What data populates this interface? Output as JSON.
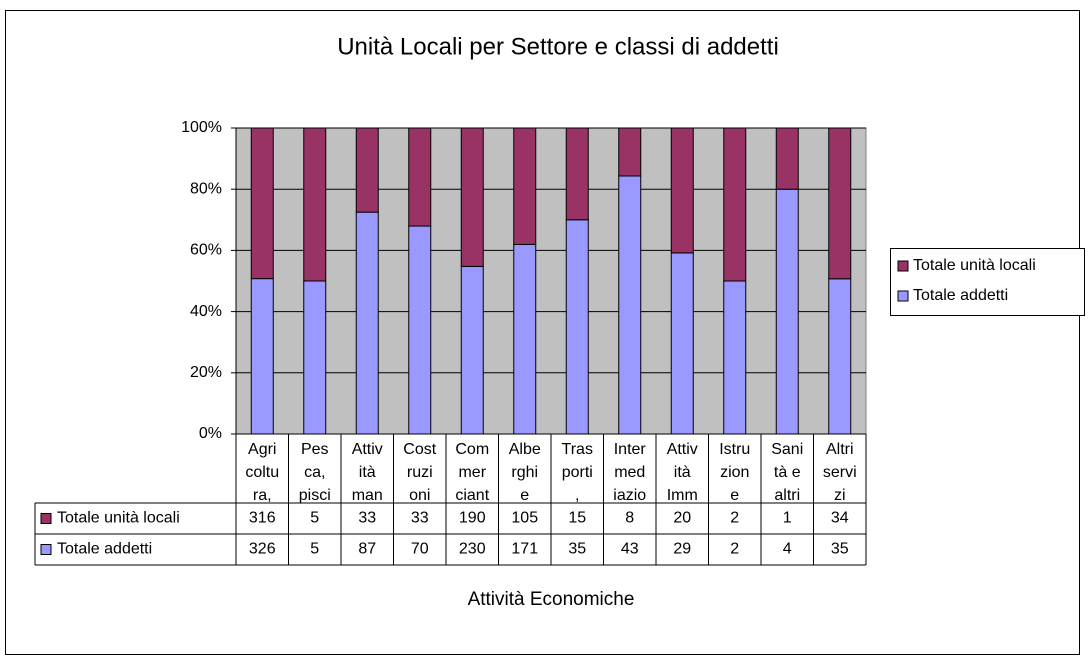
{
  "chart_data": {
    "type": "bar",
    "stacking": "percent",
    "title": "Unità Locali per Settore e classi di addetti",
    "x_label": "Attività Economiche",
    "categories": [
      [
        "Agri",
        "coltu",
        "ra,"
      ],
      [
        "Pes",
        "ca,",
        "pisci"
      ],
      [
        "Attiv",
        "ità",
        "man"
      ],
      [
        "Cost",
        "ruzi",
        "oni"
      ],
      [
        "Com",
        "mer",
        "ciant"
      ],
      [
        "Albe",
        "rghi",
        "e"
      ],
      [
        "Tras",
        "porti",
        ","
      ],
      [
        "Inter",
        "med",
        "iazio"
      ],
      [
        "Attiv",
        "ità",
        "Imm"
      ],
      [
        "Istru",
        "zion",
        "e"
      ],
      [
        "Sani",
        "tà e",
        "altri"
      ],
      [
        "Altri",
        "servi",
        "zi"
      ]
    ],
    "series": [
      {
        "name": "Totale unità locali",
        "color": "#993366",
        "values": [
          316,
          5,
          33,
          33,
          190,
          105,
          15,
          8,
          20,
          2,
          1,
          34
        ]
      },
      {
        "name": "Totale addetti",
        "color": "#9999ff",
        "values": [
          326,
          5,
          87,
          70,
          230,
          171,
          35,
          43,
          29,
          2,
          4,
          35
        ]
      }
    ],
    "ylim": [
      0,
      100
    ],
    "yticks": [
      {
        "value": 0,
        "label": "0%"
      },
      {
        "value": 20,
        "label": "20%"
      },
      {
        "value": 40,
        "label": "40%"
      },
      {
        "value": 60,
        "label": "60%"
      },
      {
        "value": 80,
        "label": "80%"
      },
      {
        "value": 100,
        "label": "100%"
      }
    ],
    "grid": true,
    "plot_background": "#c0c0c0",
    "legend": "right",
    "data_table": true
  }
}
